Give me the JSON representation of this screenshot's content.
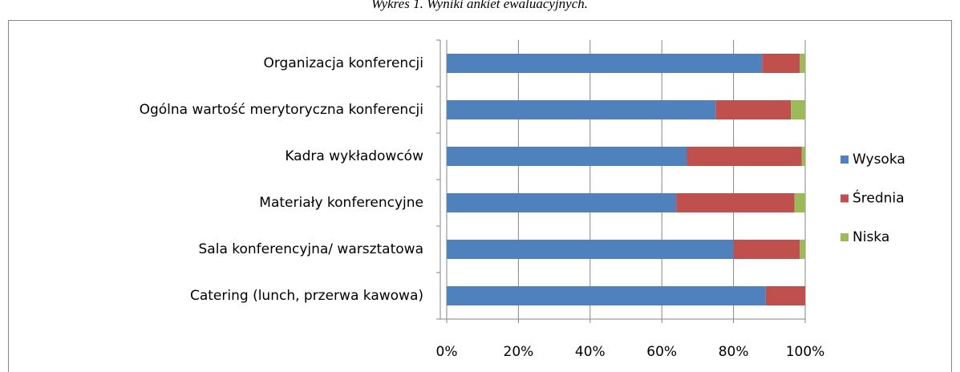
{
  "chart_data": {
    "type": "stacked_barh",
    "title": "Wykres 1. Wyniki ankiet ewaluacyjnych.",
    "categories": [
      "Organizacja konferencji",
      "Ogólna wartość merytoryczna konferencji",
      "Kadra wykładowców",
      "Materiały konferencyjne",
      "Sala konferencyjna/ warsztatowa",
      "Catering (lunch, przerwa kawowa)"
    ],
    "series": [
      {
        "name": "Wysoka",
        "color": "#4f81bd",
        "values": [
          88,
          75,
          67,
          64,
          80,
          89
        ]
      },
      {
        "name": "Średnia",
        "color": "#c0504d",
        "values": [
          10.5,
          21,
          32,
          33,
          18.5,
          11
        ]
      },
      {
        "name": "Niska",
        "color": "#9bbb59",
        "values": [
          1.5,
          4,
          1,
          3,
          1.5,
          0
        ]
      }
    ],
    "xlim": [
      0,
      100
    ],
    "xticks": [
      {
        "value": 0,
        "label": "0%"
      },
      {
        "value": 20,
        "label": "20%"
      },
      {
        "value": 40,
        "label": "40%"
      },
      {
        "value": 60,
        "label": "60%"
      },
      {
        "value": 80,
        "label": "80%"
      },
      {
        "value": 100,
        "label": "100%"
      }
    ],
    "grid": true,
    "legend": "right"
  }
}
